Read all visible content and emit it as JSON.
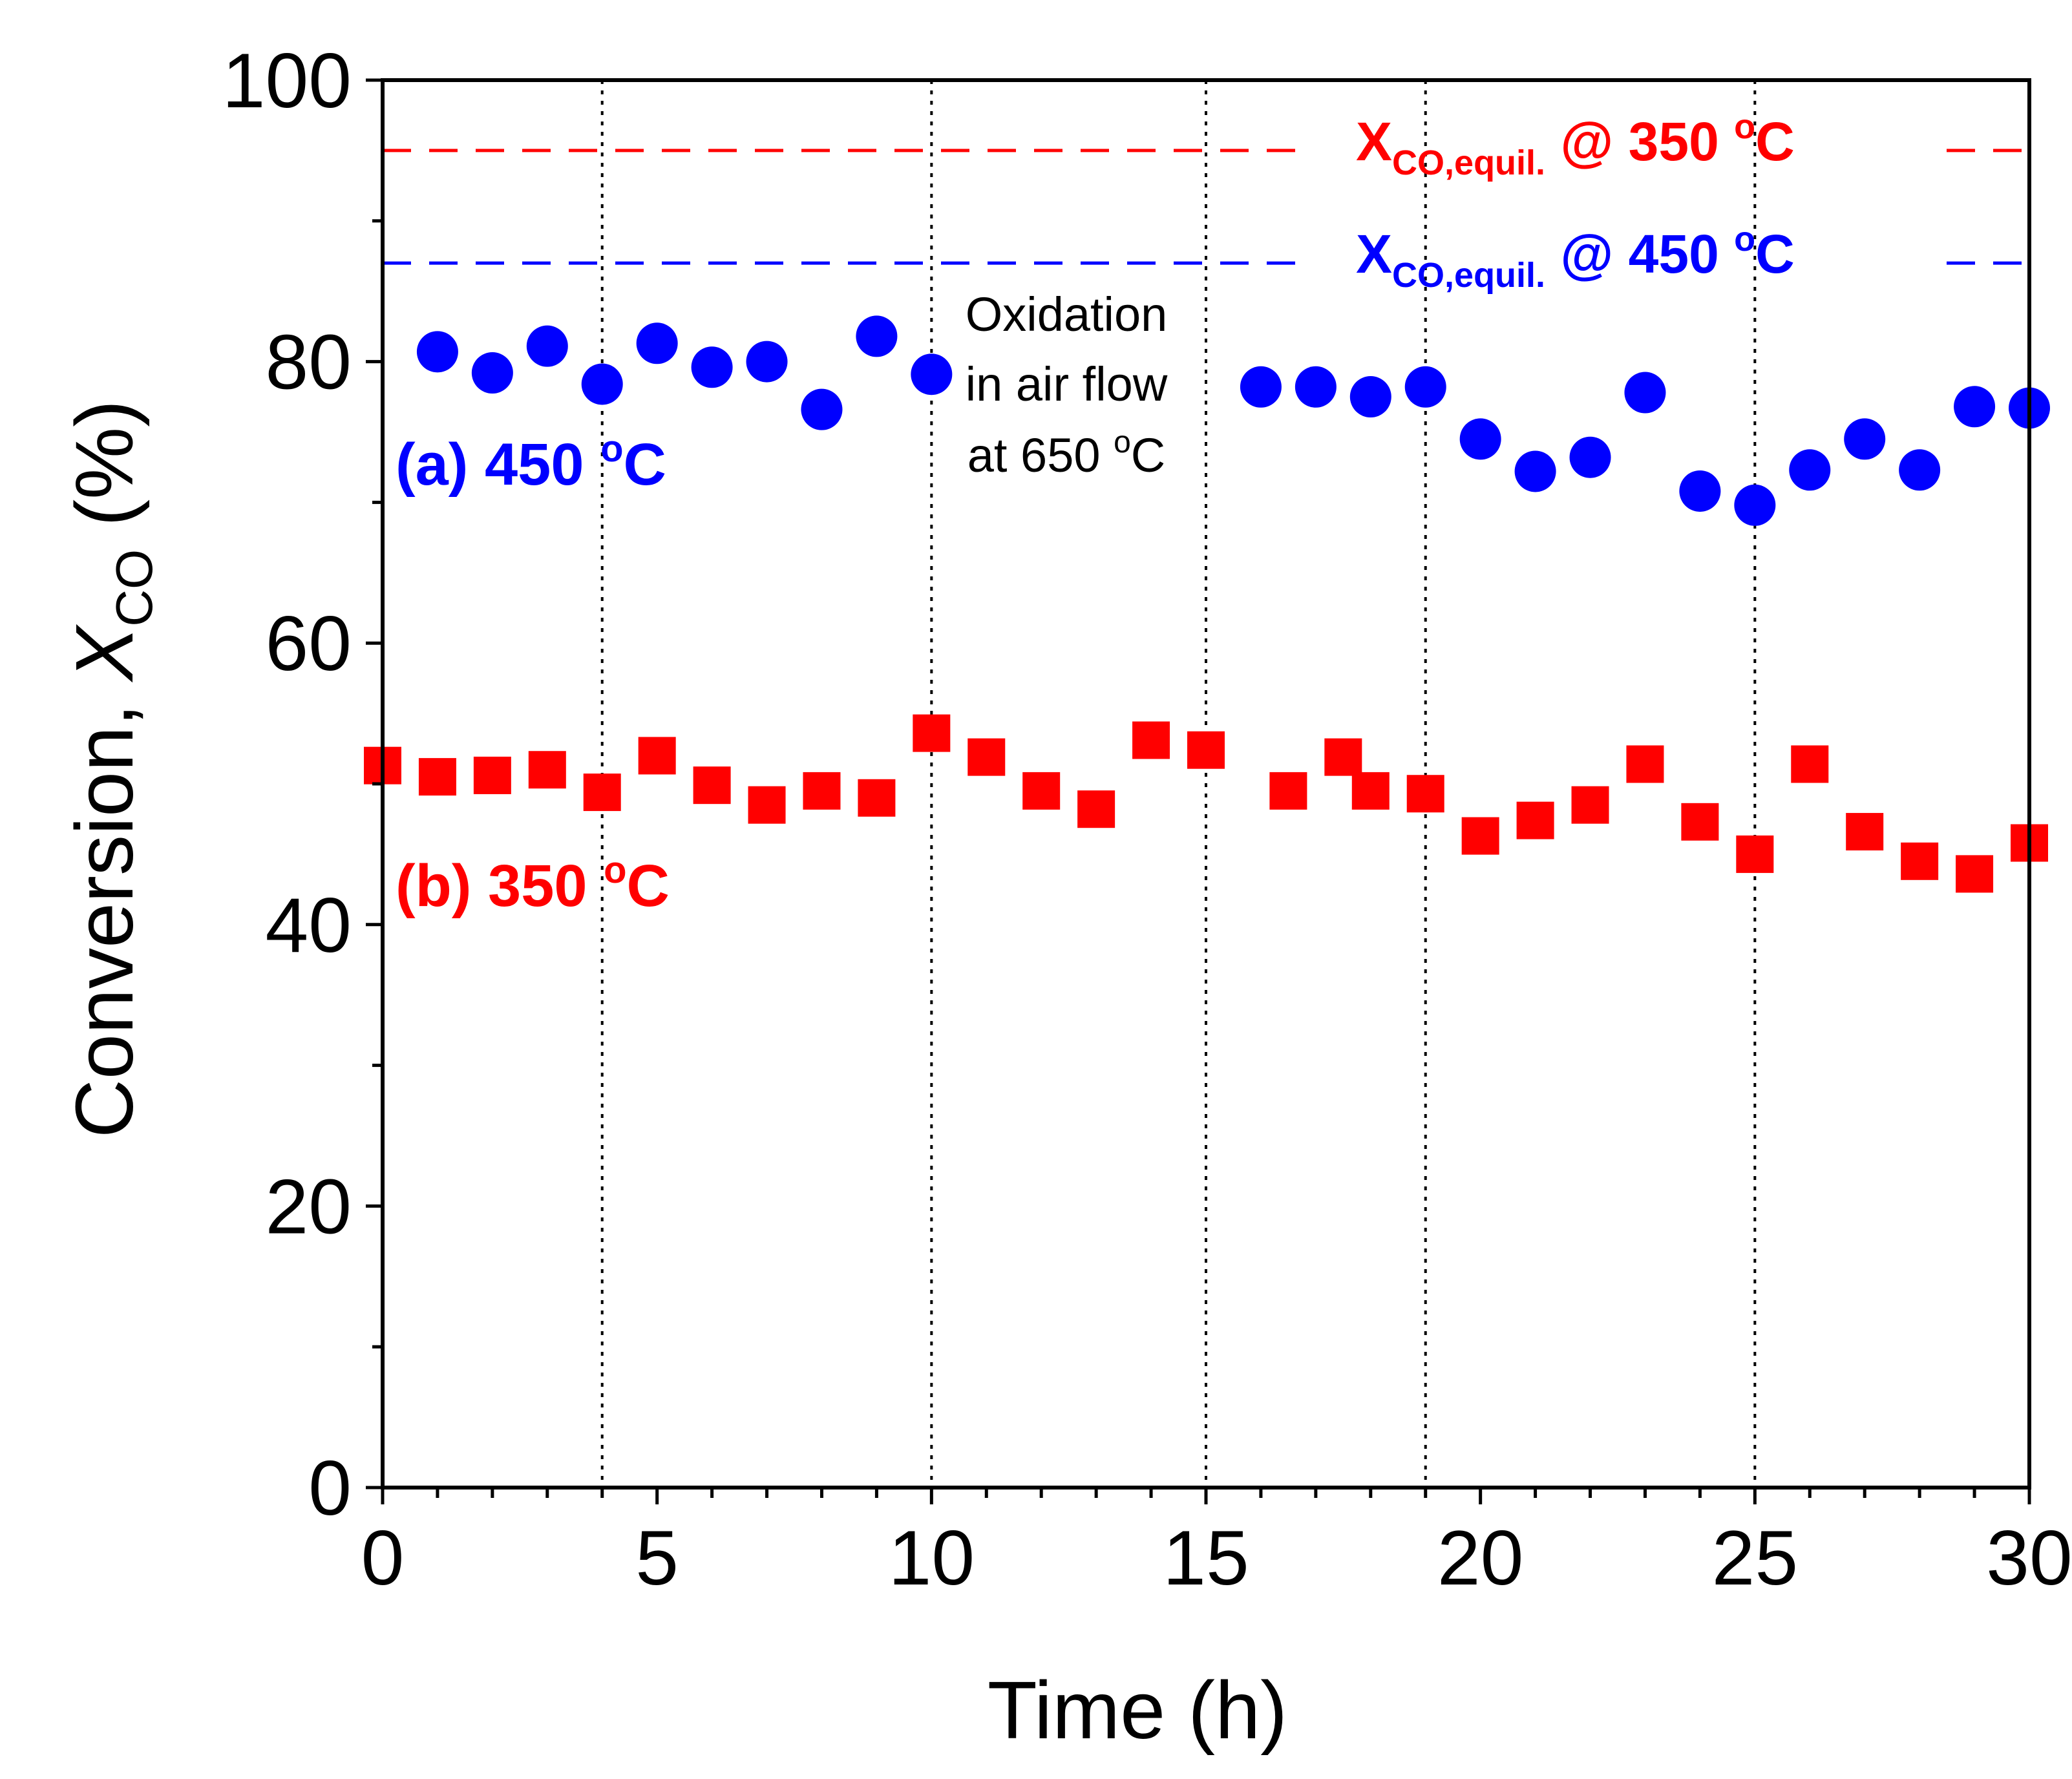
{
  "chart_data": {
    "type": "scatter",
    "title": "",
    "xlabel": "Time (h)",
    "ylabel": {
      "prefix": "Conversion, ",
      "symbol": "X",
      "subscript": "CO",
      "suffix": " (%)"
    },
    "xlim": [
      0,
      30
    ],
    "ylim": [
      0,
      100
    ],
    "xticks": [
      0,
      5,
      10,
      15,
      20,
      25,
      30
    ],
    "yticks": [
      0,
      20,
      40,
      60,
      80,
      100
    ],
    "xtick_labels": [
      "0",
      "5",
      "10",
      "15",
      "20",
      "25",
      "30"
    ],
    "ytick_labels": [
      "0",
      "20",
      "40",
      "60",
      "80",
      "100"
    ],
    "grid": false,
    "vlines": [
      4,
      10,
      15,
      19,
      25
    ],
    "series": [
      {
        "name": "(a) 450 °C",
        "label": {
          "main": "(a) 450 ",
          "sup": "o",
          "tail": "C"
        },
        "marker": "circle",
        "color": "#0000ff",
        "x": [
          1,
          2,
          3,
          4,
          5,
          6,
          7,
          8,
          9,
          10,
          16,
          17,
          18,
          19,
          20,
          21,
          22,
          23,
          24,
          25,
          26,
          27,
          28,
          29,
          30
        ],
        "y": [
          80.7,
          79.2,
          81.1,
          78.4,
          81.3,
          79.6,
          80.0,
          76.6,
          81.8,
          79.1,
          78.2,
          78.2,
          77.5,
          78.2,
          74.5,
          72.2,
          73.2,
          77.8,
          70.8,
          69.8,
          72.3,
          74.5,
          72.3,
          76.8,
          76.7
        ]
      },
      {
        "name": "(b) 350 °C",
        "label": {
          "main": "(b) 350 ",
          "sup": "o",
          "tail": "C"
        },
        "marker": "square",
        "color": "#ff0000",
        "x": [
          0,
          1,
          2,
          3,
          4,
          5,
          6,
          7,
          8,
          9,
          10,
          11,
          12,
          13,
          14,
          15,
          16.5,
          17.5,
          18,
          19,
          20,
          21,
          22,
          23,
          24,
          25,
          26,
          27,
          28,
          29,
          30
        ],
        "y": [
          51.3,
          50.5,
          50.6,
          51.0,
          49.4,
          52.0,
          49.9,
          48.5,
          49.5,
          49.0,
          53.6,
          51.9,
          49.5,
          48.2,
          53.1,
          52.4,
          49.5,
          51.9,
          49.5,
          49.3,
          46.3,
          47.4,
          48.5,
          51.4,
          47.3,
          45.0,
          51.4,
          46.6,
          44.5,
          43.6,
          45.8
        ]
      }
    ],
    "hlines": [
      {
        "name": "X_CO,equil. @ 350 °C",
        "value": 95,
        "color": "#ff0000",
        "label": {
          "symbol": "X",
          "subscript": "CO,equil.",
          "text": " @ 350 ",
          "sup": "o",
          "tail": "C"
        }
      },
      {
        "name": "X_CO,equil. @ 450 °C",
        "value": 87,
        "color": "#0000ff",
        "label": {
          "symbol": "X",
          "subscript": "CO,equil.",
          "text": " @ 450 ",
          "sup": "o",
          "tail": "C"
        }
      }
    ],
    "annotation": {
      "lines": [
        "Oxidation",
        "in air flow",
        "at 650 "
      ],
      "sup": "o",
      "tail": "C"
    }
  }
}
